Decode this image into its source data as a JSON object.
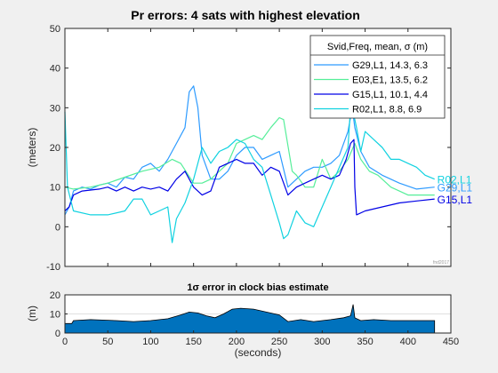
{
  "chart_data": [
    {
      "type": "line",
      "title": "Pr errors: 4 sats with highest elevation",
      "ylabel": "(meters)",
      "xlim": [
        0,
        450
      ],
      "ylim": [
        -10,
        50
      ],
      "yticks": [
        -10,
        0,
        10,
        20,
        30,
        40,
        50
      ],
      "grid": false,
      "watermark": "fnd2017",
      "legend": {
        "title": "Svid,Freq, mean, σ (m)",
        "position": "top-right"
      },
      "series": [
        {
          "name": "G29,L1, 14.3,  6.3",
          "end_label": "G29,L1",
          "color": "#2e9bff",
          "points": [
            [
              0,
              3
            ],
            [
              5,
              5
            ],
            [
              10,
              9
            ],
            [
              20,
              10
            ],
            [
              30,
              9.5
            ],
            [
              40,
              10.5
            ],
            [
              50,
              11
            ],
            [
              60,
              10
            ],
            [
              70,
              12.5
            ],
            [
              80,
              12
            ],
            [
              90,
              15
            ],
            [
              100,
              16
            ],
            [
              110,
              14
            ],
            [
              120,
              17
            ],
            [
              130,
              21
            ],
            [
              140,
              25
            ],
            [
              145,
              34
            ],
            [
              150,
              35.5
            ],
            [
              155,
              30
            ],
            [
              160,
              18
            ],
            [
              170,
              12
            ],
            [
              180,
              12
            ],
            [
              190,
              14
            ],
            [
              200,
              18
            ],
            [
              210,
              20
            ],
            [
              220,
              20
            ],
            [
              230,
              17
            ],
            [
              240,
              18
            ],
            [
              250,
              19
            ],
            [
              260,
              10
            ],
            [
              270,
              12
            ],
            [
              280,
              14
            ],
            [
              290,
              15
            ],
            [
              300,
              15
            ],
            [
              310,
              16
            ],
            [
              320,
              18
            ],
            [
              330,
              24
            ],
            [
              335,
              30
            ],
            [
              338,
              25
            ],
            [
              345,
              19
            ],
            [
              355,
              15
            ],
            [
              370,
              13
            ],
            [
              390,
              11
            ],
            [
              410,
              9.5
            ],
            [
              431,
              10
            ]
          ]
        },
        {
          "name": "E03,E1, 13.5,  6.2",
          "end_label": "",
          "color": "#55ee99",
          "points": [
            [
              0,
              10
            ],
            [
              10,
              9.5
            ],
            [
              30,
              10
            ],
            [
              50,
              11
            ],
            [
              70,
              12.5
            ],
            [
              90,
              14
            ],
            [
              110,
              15
            ],
            [
              125,
              17
            ],
            [
              135,
              16
            ],
            [
              150,
              11
            ],
            [
              160,
              11
            ],
            [
              170,
              12
            ],
            [
              180,
              14
            ],
            [
              190,
              16
            ],
            [
              200,
              21
            ],
            [
              210,
              22
            ],
            [
              220,
              23
            ],
            [
              230,
              22
            ],
            [
              240,
              25
            ],
            [
              250,
              27.5
            ],
            [
              255,
              27
            ],
            [
              265,
              14
            ],
            [
              270,
              13
            ],
            [
              280,
              10
            ],
            [
              290,
              10
            ],
            [
              300,
              17
            ],
            [
              310,
              12
            ],
            [
              320,
              14
            ],
            [
              330,
              17
            ],
            [
              338,
              21
            ],
            [
              345,
              17
            ],
            [
              355,
              14
            ],
            [
              365,
              13
            ],
            [
              380,
              10
            ],
            [
              400,
              8
            ],
            [
              431,
              8
            ]
          ]
        },
        {
          "name": "G15,L1, 10.1,  4.4",
          "end_label": "G15,L1",
          "color": "#0000e6",
          "points": [
            [
              0,
              4
            ],
            [
              5,
              5
            ],
            [
              10,
              8
            ],
            [
              20,
              9
            ],
            [
              40,
              9.5
            ],
            [
              50,
              10
            ],
            [
              60,
              9
            ],
            [
              70,
              10
            ],
            [
              80,
              9
            ],
            [
              90,
              10
            ],
            [
              100,
              9.5
            ],
            [
              110,
              10
            ],
            [
              120,
              9
            ],
            [
              130,
              12
            ],
            [
              140,
              14
            ],
            [
              150,
              10
            ],
            [
              160,
              8
            ],
            [
              170,
              9
            ],
            [
              180,
              15
            ],
            [
              190,
              16
            ],
            [
              200,
              17
            ],
            [
              210,
              16
            ],
            [
              220,
              16
            ],
            [
              230,
              13
            ],
            [
              240,
              15
            ],
            [
              250,
              14
            ],
            [
              260,
              8
            ],
            [
              270,
              10
            ],
            [
              280,
              11
            ],
            [
              290,
              12
            ],
            [
              300,
              13
            ],
            [
              310,
              12
            ],
            [
              320,
              13
            ],
            [
              328,
              17
            ],
            [
              333,
              21
            ],
            [
              337,
              22
            ],
            [
              338,
              10
            ],
            [
              340,
              3
            ],
            [
              350,
              4
            ],
            [
              370,
              5
            ],
            [
              390,
              6
            ],
            [
              410,
              6.5
            ],
            [
              431,
              7
            ]
          ]
        },
        {
          "name": "R02,L1,  8.8,  6.9",
          "end_label": "R02,L1",
          "color": "#11d2e0",
          "points": [
            [
              0,
              29
            ],
            [
              3,
              10
            ],
            [
              10,
              4
            ],
            [
              30,
              3
            ],
            [
              50,
              3
            ],
            [
              70,
              4
            ],
            [
              80,
              7
            ],
            [
              90,
              7
            ],
            [
              100,
              3
            ],
            [
              110,
              4
            ],
            [
              120,
              5
            ],
            [
              125,
              -4
            ],
            [
              130,
              2
            ],
            [
              140,
              6
            ],
            [
              150,
              12
            ],
            [
              160,
              20
            ],
            [
              170,
              16
            ],
            [
              180,
              19
            ],
            [
              190,
              20
            ],
            [
              200,
              22
            ],
            [
              210,
              21
            ],
            [
              220,
              17
            ],
            [
              230,
              15
            ],
            [
              240,
              8
            ],
            [
              250,
              1
            ],
            [
              255,
              -3
            ],
            [
              260,
              -2
            ],
            [
              270,
              4
            ],
            [
              280,
              1
            ],
            [
              290,
              0
            ],
            [
              300,
              5
            ],
            [
              310,
              10
            ],
            [
              320,
              15
            ],
            [
              330,
              20
            ],
            [
              333,
              30
            ],
            [
              336,
              29
            ],
            [
              340,
              25
            ],
            [
              345,
              19
            ],
            [
              350,
              24
            ],
            [
              360,
              22
            ],
            [
              370,
              20
            ],
            [
              380,
              17
            ],
            [
              390,
              17
            ],
            [
              400,
              16
            ],
            [
              410,
              15
            ],
            [
              420,
              13
            ],
            [
              431,
              12
            ]
          ]
        }
      ]
    },
    {
      "type": "area",
      "title": "1σ error in clock bias estimate",
      "ylabel": "(m)",
      "xlabel": "(seconds)",
      "xlim": [
        0,
        450
      ],
      "ylim": [
        0,
        20
      ],
      "xticks": [
        0,
        50,
        100,
        150,
        200,
        250,
        300,
        350,
        400,
        450
      ],
      "yticks": [
        0,
        10,
        20
      ],
      "color": "#0072bd",
      "points": [
        [
          0,
          5
        ],
        [
          8,
          5
        ],
        [
          10,
          6.5
        ],
        [
          30,
          7
        ],
        [
          60,
          6.5
        ],
        [
          80,
          6
        ],
        [
          100,
          6.5
        ],
        [
          120,
          7.5
        ],
        [
          135,
          9.5
        ],
        [
          145,
          11
        ],
        [
          155,
          10.5
        ],
        [
          165,
          9
        ],
        [
          175,
          8
        ],
        [
          185,
          10
        ],
        [
          195,
          12.5
        ],
        [
          205,
          13
        ],
        [
          220,
          12.5
        ],
        [
          235,
          11
        ],
        [
          250,
          9.5
        ],
        [
          260,
          6
        ],
        [
          275,
          7
        ],
        [
          290,
          6
        ],
        [
          300,
          6.5
        ],
        [
          310,
          7
        ],
        [
          325,
          8
        ],
        [
          333,
          9
        ],
        [
          336,
          15
        ],
        [
          338,
          8
        ],
        [
          345,
          6.5
        ],
        [
          360,
          7
        ],
        [
          380,
          6.5
        ],
        [
          400,
          6.5
        ],
        [
          431,
          6.5
        ]
      ]
    }
  ]
}
